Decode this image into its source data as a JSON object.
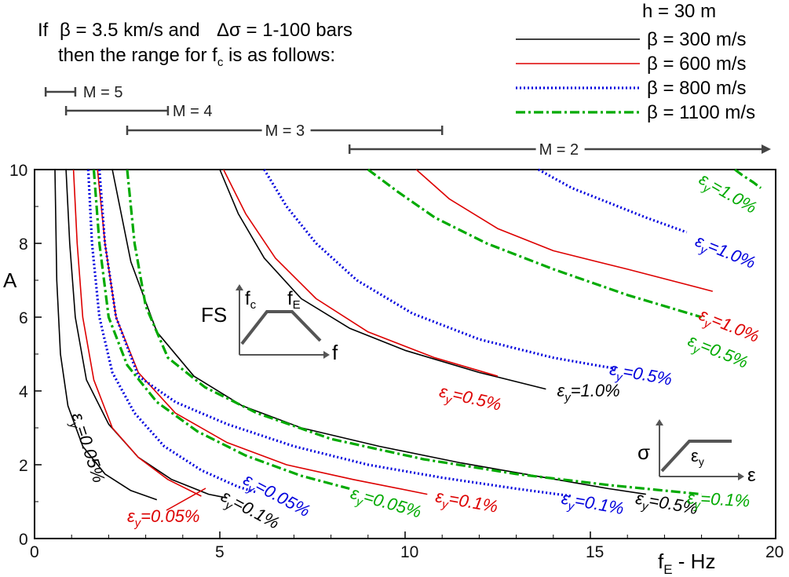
{
  "header": {
    "line1_prefix": "If",
    "line1_beta": "β = 3.5 km/s and",
    "line1_delta": "Δσ = 1-100 bars",
    "line2_main": "then the range for f",
    "line2_sub": "c",
    "line2_tail": " is as follows:",
    "magnitude_ranges": [
      {
        "label": "M = 5",
        "fc_min": 0.3,
        "fc_max": 1.1
      },
      {
        "label": "M = 4",
        "fc_min": 0.85,
        "fc_max": 3.6
      },
      {
        "label": "M = 3",
        "fc_min": 2.5,
        "fc_max": 11.0
      },
      {
        "label": "M = 2",
        "fc_min": 8.5,
        "fc_max": 20.0
      }
    ]
  },
  "legend": {
    "title": "h = 30 m",
    "entries": [
      {
        "label": "β = 300 m/s",
        "color": "#000000",
        "style": "solid"
      },
      {
        "label": "β = 600 m/s",
        "color": "#dd0000",
        "style": "solid"
      },
      {
        "label": "β = 800 m/s",
        "color": "#0000dd",
        "style": "dotted"
      },
      {
        "label": "β = 1100 m/s",
        "color": "#00aa00",
        "style": "dashdot"
      }
    ]
  },
  "insets": {
    "fs": {
      "ylabel": "FS",
      "xlabel": "f",
      "corner1": "f",
      "corner1_sub": "c",
      "corner2": "f",
      "corner2_sub": "E"
    },
    "stress": {
      "ylabel": "σ",
      "xlabel": "ε",
      "yield": "ε",
      "yield_sub": "y"
    }
  },
  "chart_data": {
    "type": "line",
    "title": "",
    "xlabel_main": "f",
    "xlabel_sub": "E",
    "xlabel_tail": " - Hz",
    "ylabel": "A",
    "xlim": [
      0,
      20
    ],
    "ylim": [
      0,
      10
    ],
    "xticks": [
      0,
      5,
      10,
      15,
      20
    ],
    "yticks": [
      0,
      2,
      4,
      6,
      8,
      10
    ],
    "series": [
      {
        "beta": 300,
        "strain": "0.05",
        "color": "#000000",
        "style": "solid",
        "points": [
          [
            0.55,
            10
          ],
          [
            0.6,
            7
          ],
          [
            0.7,
            5
          ],
          [
            0.9,
            3.6
          ],
          [
            1.3,
            2.5
          ],
          [
            1.9,
            1.75
          ],
          [
            2.6,
            1.3
          ],
          [
            3.3,
            1.05
          ]
        ]
      },
      {
        "beta": 300,
        "strain": "0.1",
        "color": "#000000",
        "style": "solid",
        "points": [
          [
            0.85,
            10
          ],
          [
            0.95,
            8
          ],
          [
            1.1,
            6
          ],
          [
            1.4,
            4.3
          ],
          [
            2.0,
            3.1
          ],
          [
            2.8,
            2.2
          ],
          [
            3.7,
            1.6
          ],
          [
            4.7,
            1.2
          ],
          [
            5.2,
            1.1
          ]
        ]
      },
      {
        "beta": 300,
        "strain": "0.5",
        "color": "#000000",
        "style": "solid",
        "points": [
          [
            2.1,
            10
          ],
          [
            2.6,
            7.5
          ],
          [
            3.3,
            5.6
          ],
          [
            4.3,
            4.4
          ],
          [
            5.6,
            3.6
          ],
          [
            7.2,
            3.0
          ],
          [
            9.3,
            2.5
          ],
          [
            11.5,
            2.05
          ],
          [
            13.5,
            1.7
          ],
          [
            15.5,
            1.35
          ],
          [
            16.5,
            1.2
          ]
        ]
      },
      {
        "beta": 300,
        "strain": "1.0",
        "color": "#000000",
        "style": "solid",
        "points": [
          [
            5.0,
            10
          ],
          [
            5.5,
            8.8
          ],
          [
            6.2,
            7.6
          ],
          [
            7.2,
            6.5
          ],
          [
            8.5,
            5.7
          ],
          [
            10.0,
            5.1
          ],
          [
            12.0,
            4.5
          ],
          [
            13.8,
            4.05
          ]
        ]
      },
      {
        "beta": 600,
        "strain": "0.05",
        "color": "#dd0000",
        "style": "solid",
        "points": [
          [
            1.05,
            10
          ],
          [
            1.15,
            8
          ],
          [
            1.3,
            6
          ],
          [
            1.6,
            4.3
          ],
          [
            2.1,
            3.0
          ],
          [
            2.8,
            2.2
          ],
          [
            3.6,
            1.6
          ],
          [
            4.5,
            1.15
          ]
        ]
      },
      {
        "beta": 600,
        "strain": "0.1",
        "color": "#dd0000",
        "style": "solid",
        "points": [
          [
            1.7,
            10
          ],
          [
            1.9,
            8
          ],
          [
            2.2,
            6
          ],
          [
            2.8,
            4.5
          ],
          [
            3.8,
            3.4
          ],
          [
            5.2,
            2.6
          ],
          [
            6.8,
            2.0
          ],
          [
            8.6,
            1.6
          ],
          [
            10.6,
            1.2
          ]
        ]
      },
      {
        "beta": 600,
        "strain": "0.5",
        "color": "#dd0000",
        "style": "solid",
        "points": [
          [
            5.1,
            10
          ],
          [
            5.7,
            8.8
          ],
          [
            6.5,
            7.6
          ],
          [
            7.6,
            6.5
          ],
          [
            9.0,
            5.6
          ],
          [
            10.8,
            4.9
          ],
          [
            12.5,
            4.4
          ]
        ]
      },
      {
        "beta": 600,
        "strain": "1.0",
        "color": "#dd0000",
        "style": "solid",
        "points": [
          [
            10.3,
            10
          ],
          [
            11.2,
            9.2
          ],
          [
            12.5,
            8.4
          ],
          [
            14.0,
            7.8
          ],
          [
            16.0,
            7.3
          ],
          [
            18.3,
            6.7
          ]
        ]
      },
      {
        "beta": 800,
        "strain": "0.05",
        "color": "#0000dd",
        "style": "dotted",
        "points": [
          [
            1.45,
            10
          ],
          [
            1.55,
            8
          ],
          [
            1.75,
            6
          ],
          [
            2.1,
            4.5
          ],
          [
            2.7,
            3.4
          ],
          [
            3.5,
            2.5
          ],
          [
            4.5,
            1.85
          ],
          [
            5.5,
            1.4
          ],
          [
            6.0,
            1.25
          ]
        ]
      },
      {
        "beta": 800,
        "strain": "0.1",
        "color": "#0000dd",
        "style": "dotted",
        "points": [
          [
            1.75,
            10
          ],
          [
            1.9,
            8
          ],
          [
            2.2,
            6
          ],
          [
            2.8,
            4.4
          ],
          [
            3.8,
            3.7
          ],
          [
            5.2,
            3.1
          ],
          [
            7.0,
            2.5
          ],
          [
            9.0,
            2.0
          ],
          [
            11.0,
            1.65
          ],
          [
            13.0,
            1.35
          ],
          [
            14.5,
            1.15
          ]
        ]
      },
      {
        "beta": 800,
        "strain": "0.5",
        "color": "#0000dd",
        "style": "dotted",
        "points": [
          [
            6.2,
            10
          ],
          [
            6.8,
            9.0
          ],
          [
            7.6,
            8.0
          ],
          [
            8.7,
            7.0
          ],
          [
            10.2,
            6.1
          ],
          [
            12.0,
            5.4
          ],
          [
            14.0,
            4.9
          ],
          [
            15.7,
            4.6
          ]
        ]
      },
      {
        "beta": 800,
        "strain": "1.0",
        "color": "#0000dd",
        "style": "dotted",
        "points": [
          [
            13.6,
            10
          ],
          [
            14.5,
            9.5
          ],
          [
            15.5,
            9.1
          ],
          [
            16.5,
            8.7
          ],
          [
            17.6,
            8.3
          ]
        ]
      },
      {
        "beta": 1100,
        "strain": "0.05",
        "color": "#00aa00",
        "style": "dashdot",
        "points": [
          [
            1.6,
            10
          ],
          [
            1.75,
            8
          ],
          [
            2.0,
            6
          ],
          [
            2.5,
            4.7
          ],
          [
            3.3,
            3.7
          ],
          [
            4.4,
            2.9
          ],
          [
            5.7,
            2.25
          ],
          [
            7.2,
            1.7
          ],
          [
            8.5,
            1.35
          ]
        ]
      },
      {
        "beta": 1100,
        "strain": "0.1",
        "color": "#00aa00",
        "style": "dashdot",
        "points": [
          [
            2.5,
            10
          ],
          [
            2.7,
            8
          ],
          [
            3.0,
            6.3
          ],
          [
            3.6,
            4.9
          ],
          [
            4.6,
            4.1
          ],
          [
            6.0,
            3.4
          ],
          [
            8.0,
            2.7
          ],
          [
            10.5,
            2.15
          ],
          [
            13.0,
            1.75
          ],
          [
            15.5,
            1.45
          ],
          [
            18.0,
            1.2
          ]
        ]
      },
      {
        "beta": 1100,
        "strain": "0.5",
        "color": "#00aa00",
        "style": "dashdot",
        "points": [
          [
            9.0,
            10
          ],
          [
            9.8,
            9.4
          ],
          [
            10.8,
            8.7
          ],
          [
            12.2,
            8.0
          ],
          [
            14.0,
            7.3
          ],
          [
            16.0,
            6.6
          ],
          [
            18.0,
            6.0
          ]
        ]
      },
      {
        "beta": 1100,
        "strain": "1.0",
        "color": "#00aa00",
        "style": "dashdot",
        "points": [
          [
            18.9,
            10
          ],
          [
            19.1,
            9.85
          ],
          [
            19.4,
            9.65
          ],
          [
            19.6,
            9.5
          ]
        ]
      }
    ],
    "curve_labels": [
      {
        "main": "ε",
        "sub": "y",
        "value": "=0.05%",
        "color": "#000000",
        "x": 1.0,
        "y": 3.35,
        "angle": 72
      },
      {
        "main": "ε",
        "sub": "y",
        "value": "=0.05%",
        "color": "#dd0000",
        "x": 2.5,
        "y": 0.45,
        "angle": 0
      },
      {
        "main": "ε",
        "sub": "y",
        "value": "=0.1%",
        "color": "#000000",
        "x": 5.0,
        "y": 1.05,
        "angle": 28
      },
      {
        "main": "ε",
        "sub": "y",
        "value": "=0.05%",
        "color": "#0000dd",
        "x": 5.6,
        "y": 1.5,
        "angle": 28
      },
      {
        "main": "ε",
        "sub": "y",
        "value": "=0.05%",
        "color": "#00aa00",
        "x": 8.5,
        "y": 1.1,
        "angle": 16
      },
      {
        "main": "ε",
        "sub": "y",
        "value": "=0.1%",
        "color": "#dd0000",
        "x": 10.8,
        "y": 1.0,
        "angle": 10
      },
      {
        "main": "ε",
        "sub": "y",
        "value": "=0.1%",
        "color": "#0000dd",
        "x": 14.2,
        "y": 0.95,
        "angle": 10
      },
      {
        "main": "ε",
        "sub": "y",
        "value": "=0.5%",
        "color": "#000000",
        "x": 16.2,
        "y": 0.95,
        "angle": 10
      },
      {
        "main": "ε",
        "sub": "y",
        "value": "=0.1%",
        "color": "#00aa00",
        "x": 17.6,
        "y": 0.95,
        "angle": 3
      },
      {
        "main": "ε",
        "sub": "y",
        "value": "=0.5%",
        "color": "#dd0000",
        "x": 10.9,
        "y": 3.85,
        "angle": 13
      },
      {
        "main": "ε",
        "sub": "y",
        "value": "=1.0%",
        "color": "#000000",
        "x": 14.1,
        "y": 3.85,
        "angle": 0
      },
      {
        "main": "ε",
        "sub": "y",
        "value": "=0.5%",
        "color": "#0000dd",
        "x": 15.5,
        "y": 4.45,
        "angle": 10
      },
      {
        "main": "ε",
        "sub": "y",
        "value": "=1.0%",
        "color": "#dd0000",
        "x": 17.9,
        "y": 5.95,
        "angle": 22
      },
      {
        "main": "ε",
        "sub": "y",
        "value": "=0.5%",
        "color": "#00aa00",
        "x": 17.6,
        "y": 5.25,
        "angle": 22
      },
      {
        "main": "ε",
        "sub": "y",
        "value": "=1.0%",
        "color": "#0000dd",
        "x": 17.8,
        "y": 7.95,
        "angle": 22
      },
      {
        "main": "ε",
        "sub": "y",
        "value": "=1.0%",
        "color": "#00aa00",
        "x": 17.9,
        "y": 9.65,
        "angle": 30
      }
    ]
  }
}
